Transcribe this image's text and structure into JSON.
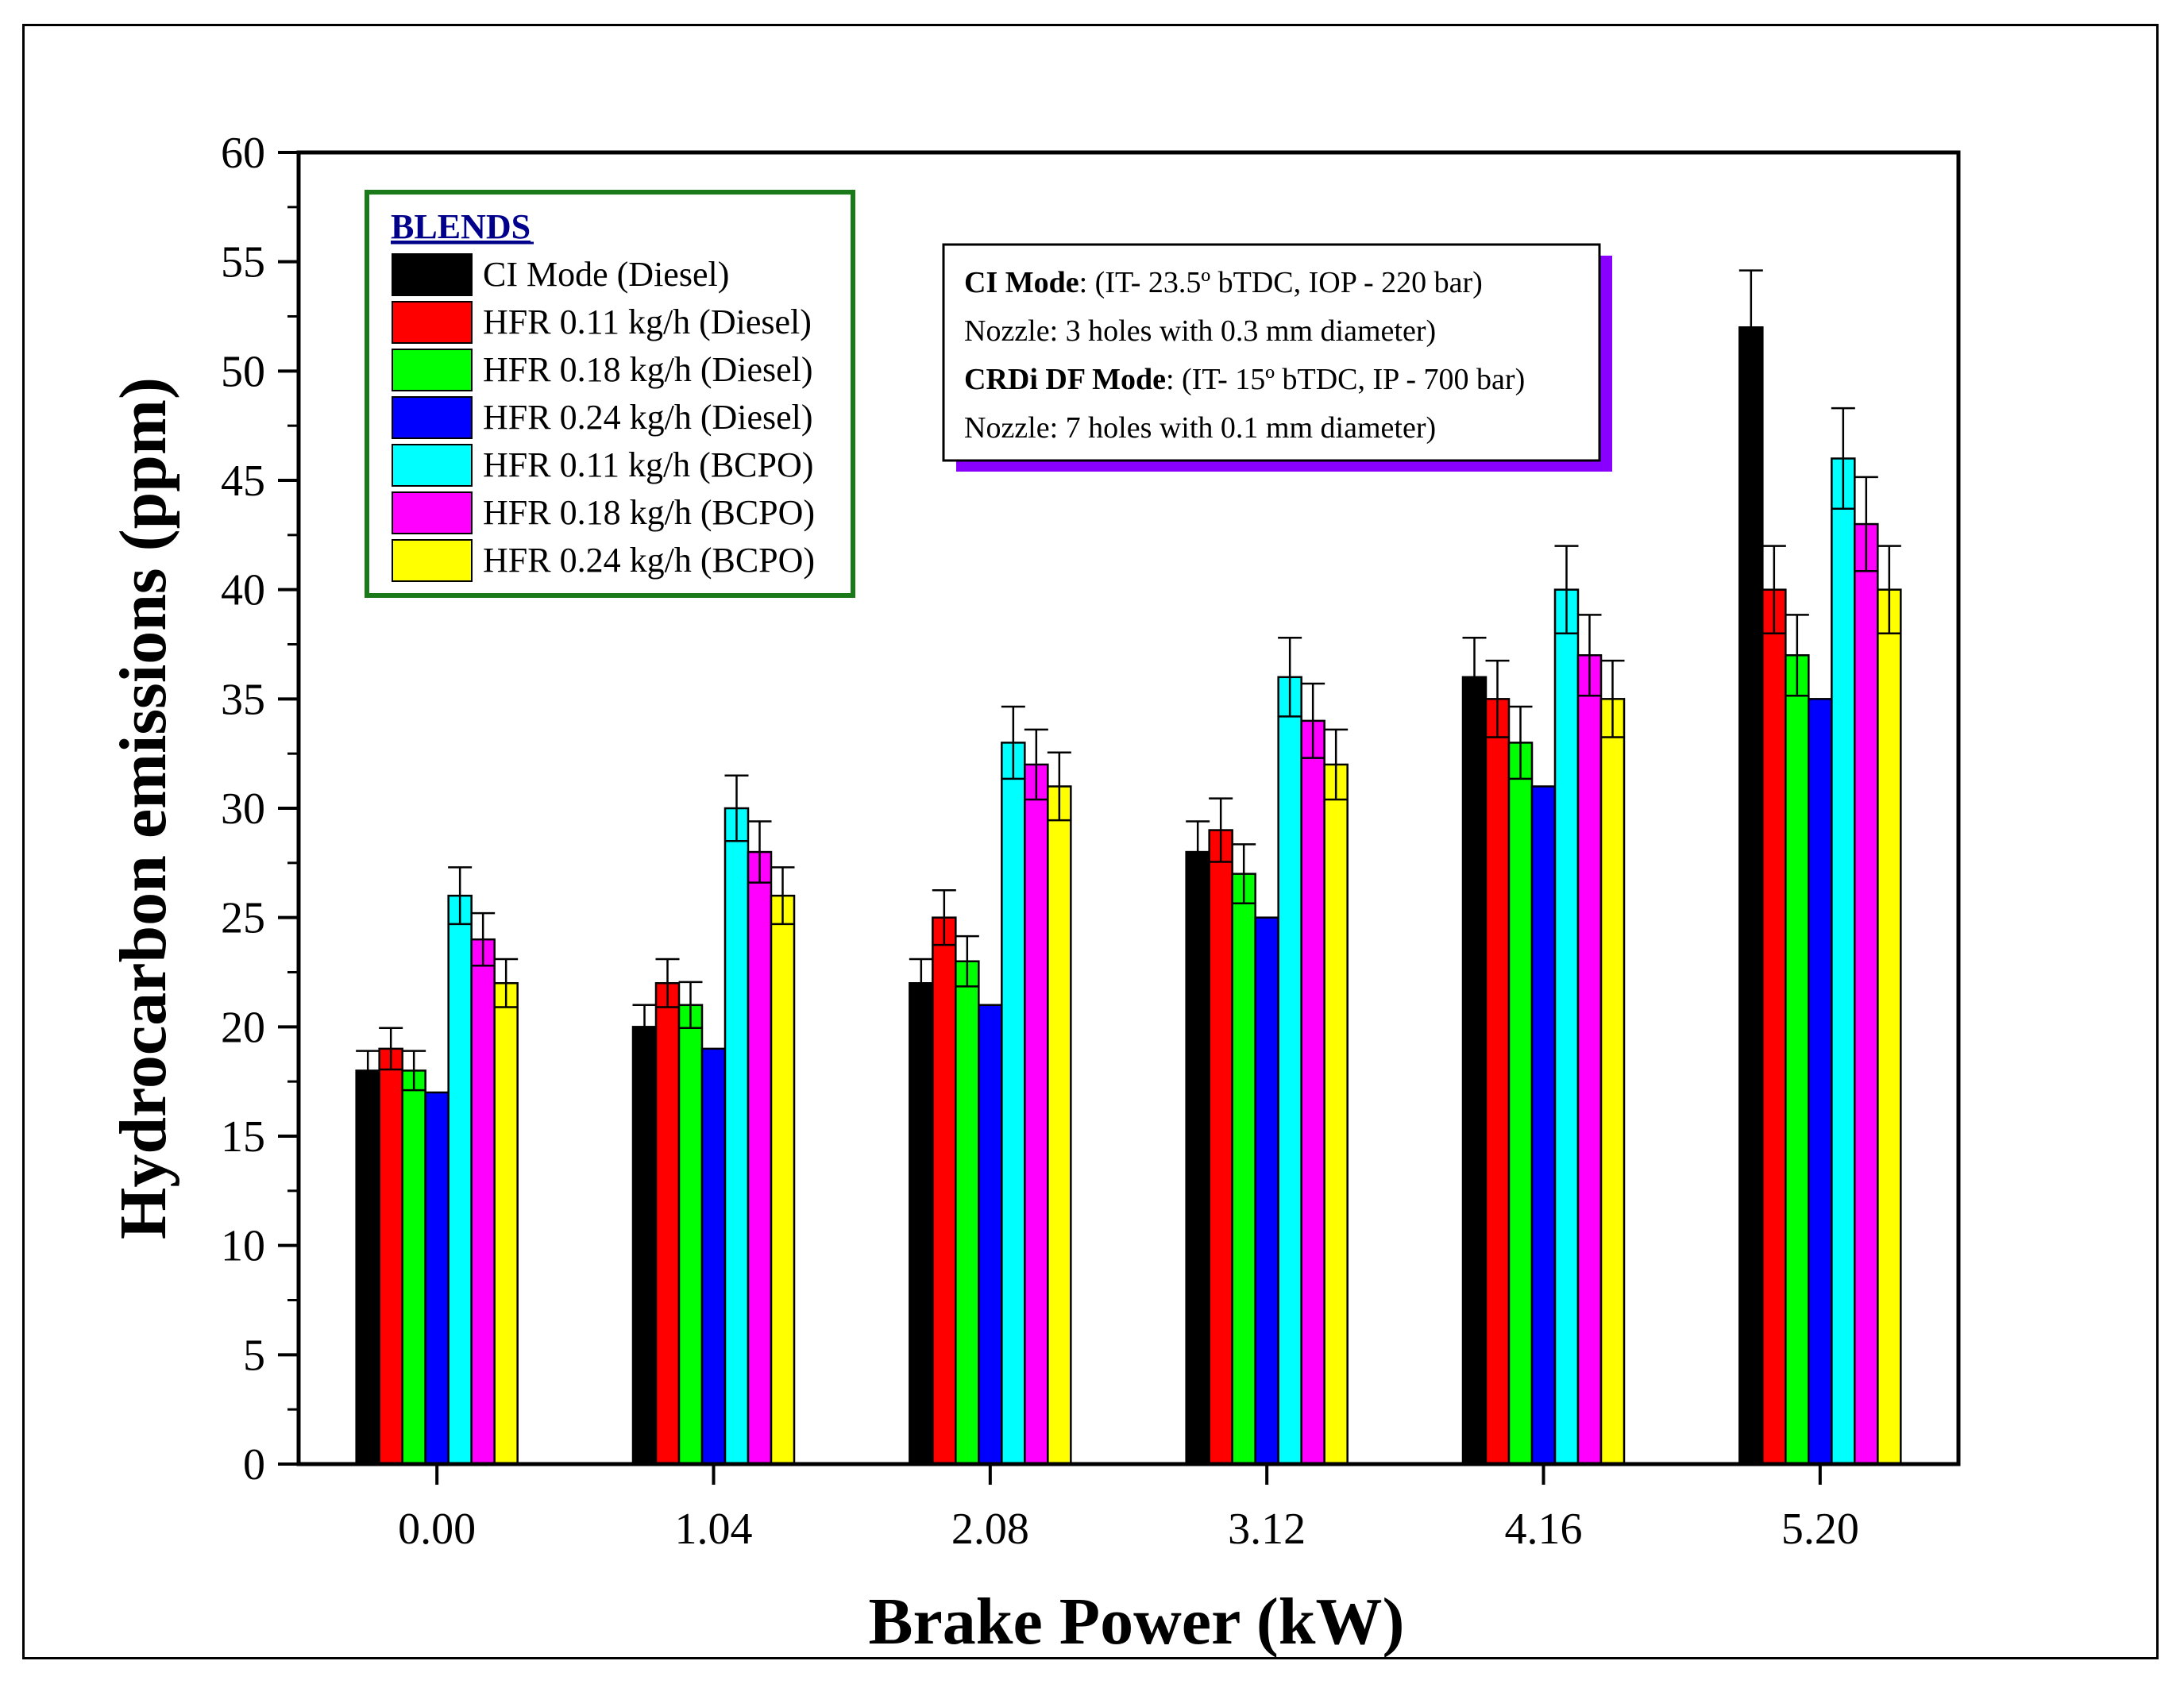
{
  "chart_data": {
    "type": "bar",
    "xlabel": "Brake Power (kW)",
    "ylabel": "Hydrocarbon emissions (ppm)",
    "ylim": [
      0,
      60
    ],
    "yticks": [
      0,
      5,
      10,
      15,
      20,
      25,
      30,
      35,
      40,
      45,
      50,
      55,
      60
    ],
    "categories": [
      "0.00",
      "1.04",
      "2.08",
      "3.12",
      "4.16",
      "5.20"
    ],
    "legend_title": "BLENDS",
    "legend_position": "top-left",
    "series": [
      {
        "name": "CI Mode (Diesel)",
        "color": "#000000",
        "values": [
          18,
          20,
          22,
          28,
          36,
          52
        ],
        "errors": [
          0.9,
          1.0,
          1.1,
          1.4,
          1.8,
          2.6
        ]
      },
      {
        "name": "HFR 0.11  kg/h (Diesel)",
        "color": "#ff0000",
        "values": [
          19,
          22,
          25,
          29,
          35,
          40
        ],
        "errors": [
          0.95,
          1.1,
          1.25,
          1.45,
          1.75,
          2.0
        ]
      },
      {
        "name": "HFR 0.18  kg/h (Diesel)",
        "color": "#00ff00",
        "values": [
          18,
          21,
          23,
          27,
          33,
          37
        ],
        "errors": [
          0.9,
          1.05,
          1.15,
          1.35,
          1.65,
          1.85
        ]
      },
      {
        "name": "HFR 0.24  kg/h (Diesel)",
        "color": "#0000ff",
        "values": [
          17,
          19,
          21,
          25,
          31,
          35
        ],
        "errors": [
          0,
          0,
          0,
          0,
          0,
          0
        ]
      },
      {
        "name": "HFR 0.11  kg/h (BCPO)",
        "color": "#00ffff",
        "values": [
          26,
          30,
          33,
          36,
          40,
          46
        ],
        "errors": [
          1.3,
          1.5,
          1.65,
          1.8,
          2.0,
          2.3
        ]
      },
      {
        "name": "HFR 0.18  kg/h (BCPO)",
        "color": "#ff00ff",
        "values": [
          24,
          28,
          32,
          34,
          37,
          43
        ],
        "errors": [
          1.2,
          1.4,
          1.6,
          1.7,
          1.85,
          2.15
        ]
      },
      {
        "name": "HFR 0.24  kg/h (BCPO)",
        "color": "#ffff00",
        "values": [
          22,
          26,
          31,
          32,
          35,
          40
        ],
        "errors": [
          1.1,
          1.3,
          1.55,
          1.6,
          1.75,
          2.0
        ]
      }
    ],
    "annotation": {
      "line1_bold": "CI Mode",
      "line1": ": (IT- 23.5º bTDC, IOP - 220 bar)",
      "line2": "Nozzle: 3 holes with 0.3 mm diameter)",
      "line3_bold": "CRDi DF Mode",
      "line3": ": (IT- 15º bTDC, IP - 700 bar)",
      "line4": "Nozzle: 7 holes with 0.1 mm diameter)"
    }
  },
  "colors": {
    "legend_border": "#1a7a1a",
    "note_shadow": "#8a00ff"
  }
}
